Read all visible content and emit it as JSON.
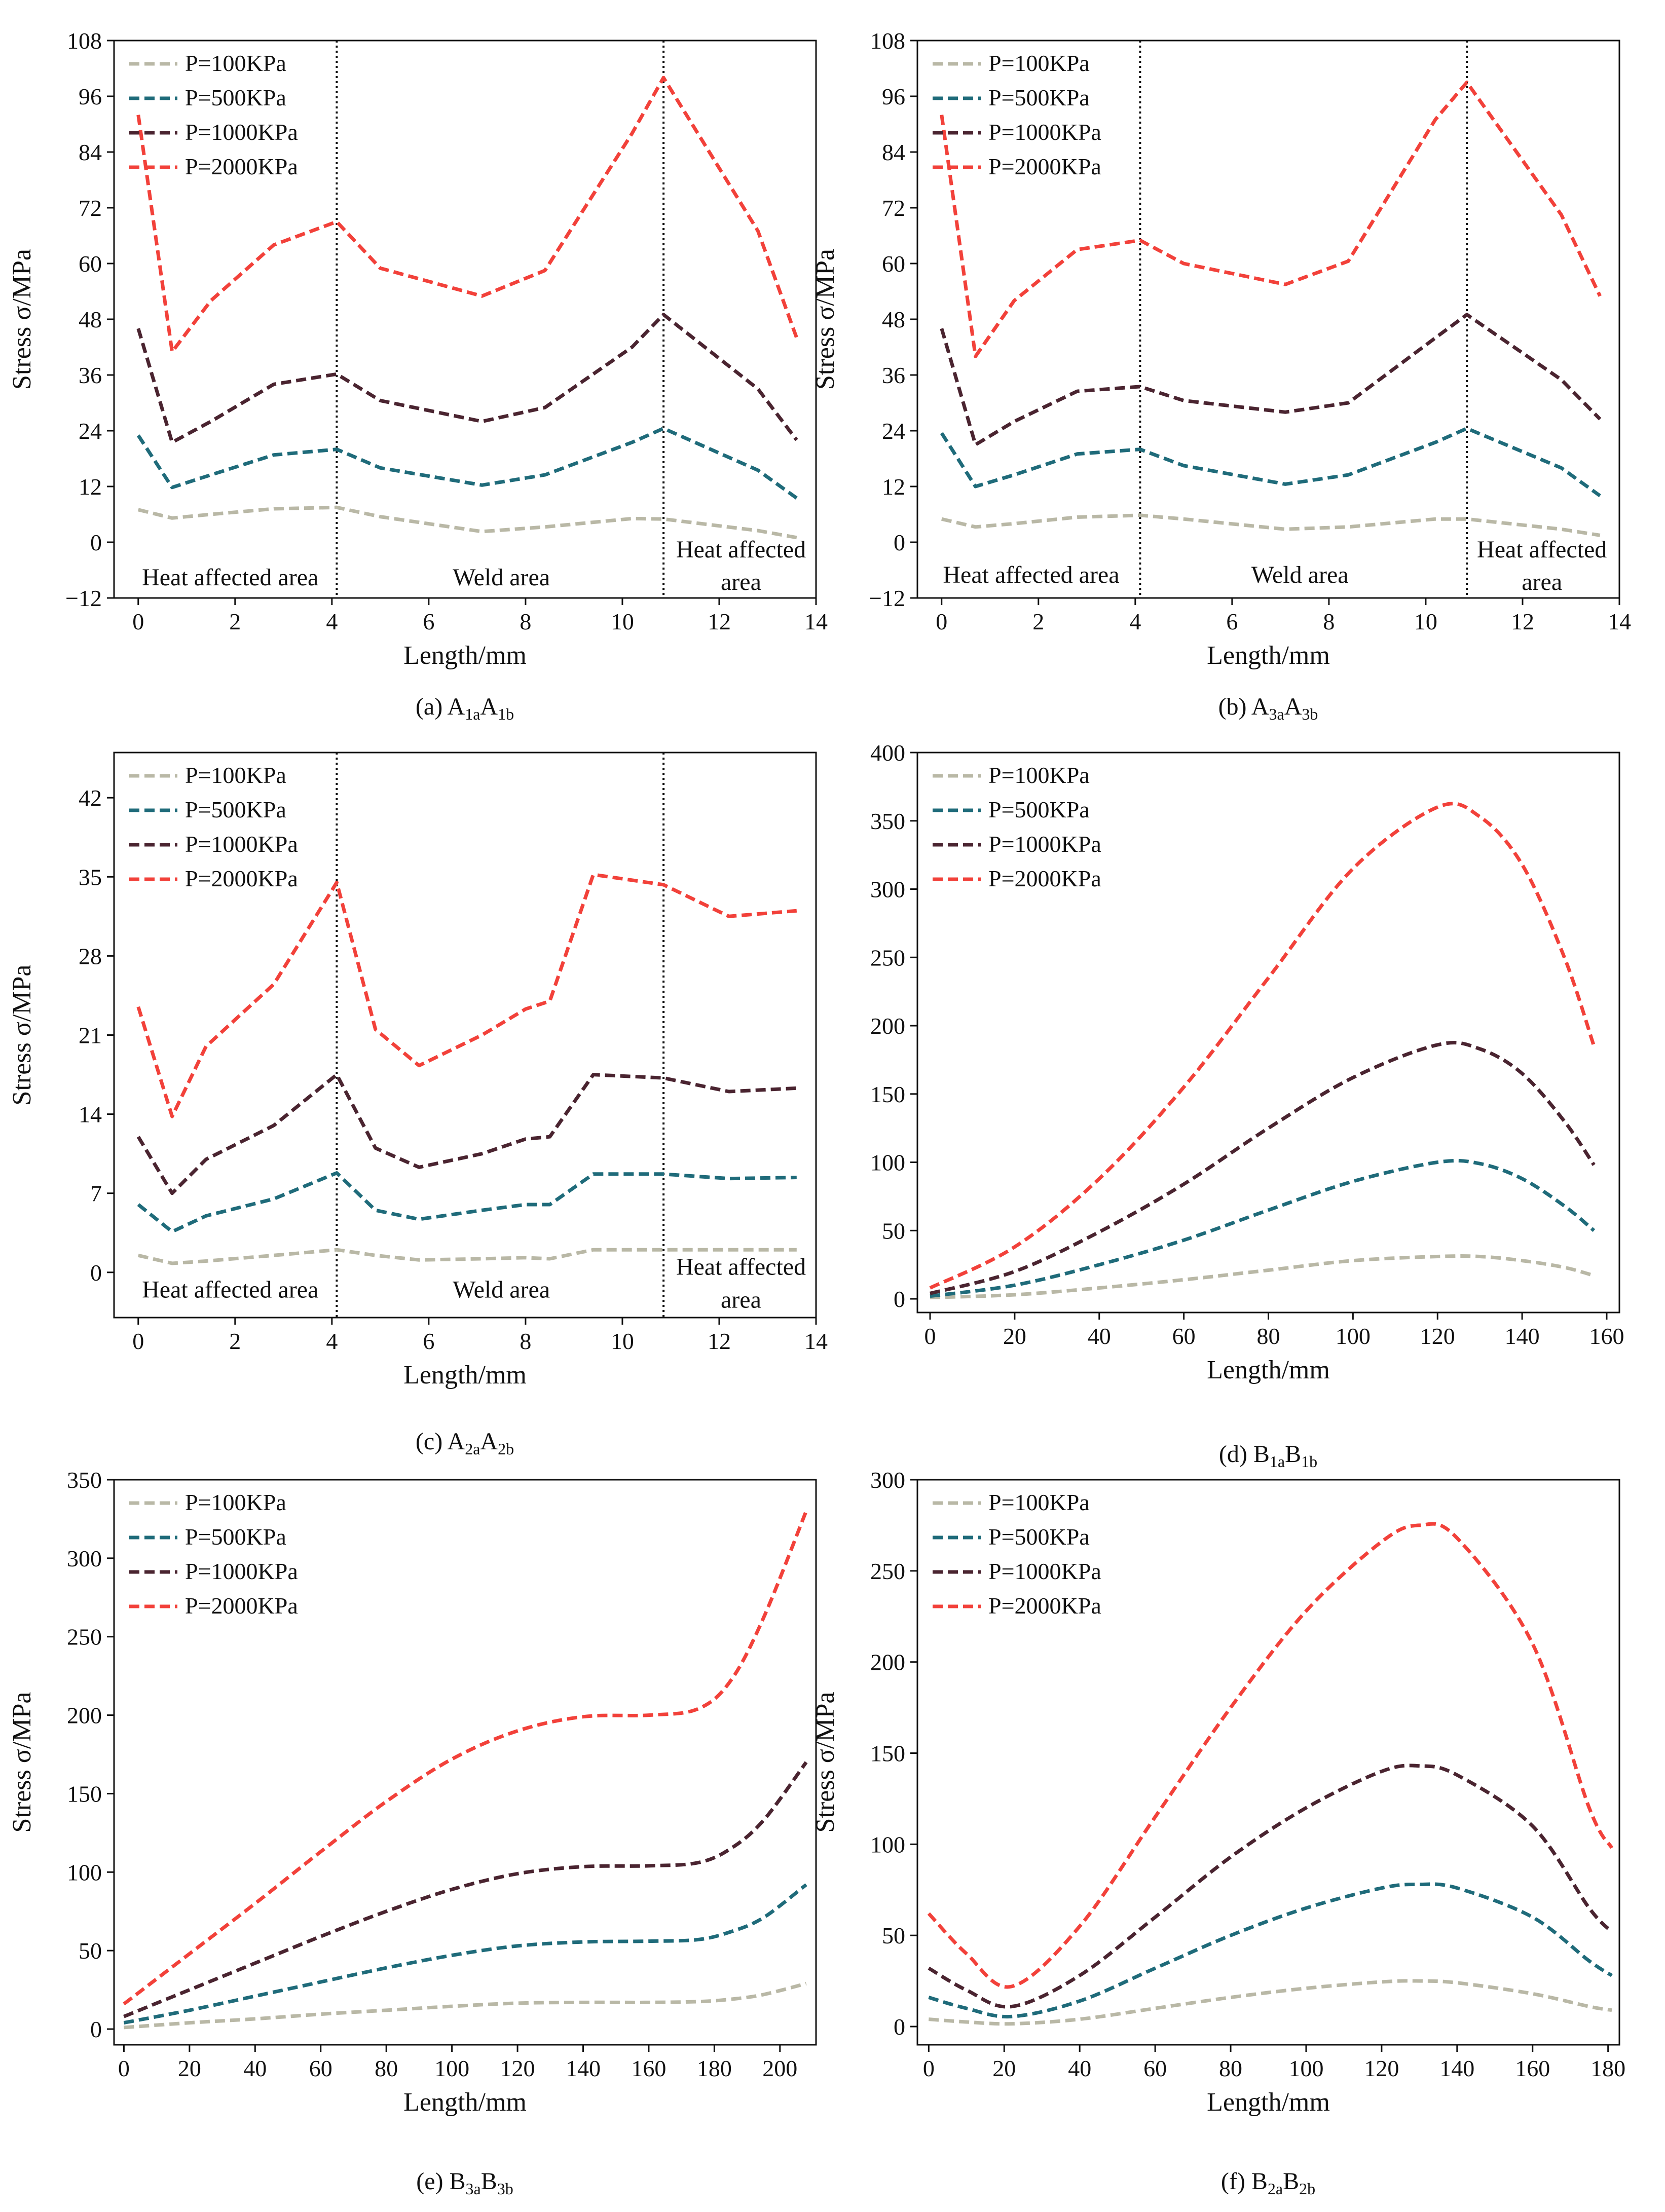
{
  "legend_labels": [
    "P=100KPa",
    "P=500KPa",
    "P=1000KPa",
    "P=2000KPa"
  ],
  "series_colors": [
    "#b9b8a6",
    "#1f6b7a",
    "#4a2430",
    "#f2413a"
  ],
  "chart_data": [
    {
      "id": "a",
      "type": "line",
      "caption_main": "(a) A",
      "caption_sub1": "1a",
      "caption_mid": "A",
      "caption_sub2": "1b",
      "xlabel": "Length/mm",
      "ylabel": "Stress σ/MPa",
      "xlim": [
        -0.5,
        14
      ],
      "ylim": [
        -12,
        108
      ],
      "xticks": [
        0,
        2,
        4,
        6,
        8,
        10,
        12,
        14
      ],
      "yticks": [
        -12,
        0,
        12,
        24,
        36,
        48,
        60,
        72,
        84,
        96,
        108
      ],
      "ytick_labels": [
        "−12",
        "0",
        "12",
        "24",
        "36",
        "48",
        "60",
        "72",
        "84",
        "96",
        "108"
      ],
      "vlines": [
        4.1,
        10.85
      ],
      "region_labels": [
        {
          "text": "Heat affected area",
          "x": 1.9,
          "y": -7.5,
          "anchor": "middle"
        },
        {
          "text": "Weld area",
          "x": 7.5,
          "y": -7.5,
          "anchor": "middle"
        },
        {
          "text": "Heat affected",
          "x": 12.45,
          "y": -1.5,
          "anchor": "middle"
        },
        {
          "text": "area",
          "x": 12.45,
          "y": -8.5,
          "anchor": "middle"
        }
      ],
      "series": [
        {
          "name": "P=100KPa",
          "x": [
            0,
            0.7,
            1.5,
            2.8,
            4.1,
            5.0,
            7.1,
            8.4,
            10.2,
            10.85,
            12.8,
            13.6
          ],
          "y": [
            7,
            5.2,
            6,
            7.2,
            7.5,
            5.5,
            2.3,
            3.3,
            5.1,
            5,
            2.5,
            1
          ]
        },
        {
          "name": "P=500KPa",
          "x": [
            0,
            0.7,
            1.5,
            2.8,
            4.1,
            5.0,
            7.1,
            8.4,
            10.2,
            10.85,
            12.8,
            13.6
          ],
          "y": [
            23,
            11.8,
            14.5,
            18.8,
            20,
            16,
            12.3,
            14.5,
            21.5,
            24.5,
            15.5,
            9.5
          ]
        },
        {
          "name": "P=1000KPa",
          "x": [
            0,
            0.7,
            1.5,
            2.8,
            4.1,
            5.0,
            7.1,
            8.4,
            10.2,
            10.85,
            12.8,
            13.6
          ],
          "y": [
            46,
            21.5,
            26,
            34,
            36.2,
            30.5,
            26,
            29,
            42,
            49,
            33,
            22
          ]
        },
        {
          "name": "P=2000KPa",
          "x": [
            0,
            0.7,
            1.5,
            2.8,
            4.1,
            5.0,
            7.1,
            8.4,
            10.2,
            10.85,
            12.8,
            13.6
          ],
          "y": [
            92,
            41,
            52,
            64,
            69,
            59,
            53,
            58.5,
            88,
            100,
            67,
            44
          ]
        }
      ]
    },
    {
      "id": "b",
      "type": "line",
      "caption_main": "(b) A",
      "caption_sub1": "3a",
      "caption_mid": "A",
      "caption_sub2": "3b",
      "xlabel": "Length/mm",
      "ylabel": "Stress σ/MPa",
      "xlim": [
        -0.5,
        14
      ],
      "ylim": [
        -12,
        108
      ],
      "xticks": [
        0,
        2,
        4,
        6,
        8,
        10,
        12,
        14
      ],
      "yticks": [
        -12,
        0,
        12,
        24,
        36,
        48,
        60,
        72,
        84,
        96,
        108
      ],
      "ytick_labels": [
        "−12",
        "0",
        "12",
        "24",
        "36",
        "48",
        "60",
        "72",
        "84",
        "96",
        "108"
      ],
      "vlines": [
        4.1,
        10.85
      ],
      "region_labels": [
        {
          "text": "Heat affected area",
          "x": 1.85,
          "y": -7,
          "anchor": "middle"
        },
        {
          "text": "Weld area",
          "x": 7.4,
          "y": -7,
          "anchor": "middle"
        },
        {
          "text": "Heat affected",
          "x": 12.4,
          "y": -1.5,
          "anchor": "middle"
        },
        {
          "text": "area",
          "x": 12.4,
          "y": -8.5,
          "anchor": "middle"
        }
      ],
      "series": [
        {
          "name": "P=100KPa",
          "x": [
            0,
            0.7,
            1.5,
            2.8,
            4.1,
            5.0,
            7.1,
            8.4,
            10.2,
            10.85,
            12.8,
            13.6
          ],
          "y": [
            5,
            3.3,
            4,
            5.4,
            5.8,
            5,
            2.8,
            3.3,
            5,
            5,
            2.8,
            1.5
          ]
        },
        {
          "name": "P=500KPa",
          "x": [
            0,
            0.7,
            1.5,
            2.8,
            4.1,
            5.0,
            7.1,
            8.4,
            10.2,
            10.85,
            12.8,
            13.6
          ],
          "y": [
            23.5,
            12,
            14.5,
            19,
            20,
            16.5,
            12.5,
            14.5,
            21.5,
            24.5,
            16,
            10
          ]
        },
        {
          "name": "P=1000KPa",
          "x": [
            0,
            0.7,
            1.5,
            2.8,
            4.1,
            5.0,
            7.1,
            8.4,
            10.2,
            10.85,
            12.8,
            13.6
          ],
          "y": [
            46,
            21,
            26,
            32.5,
            33.5,
            30.5,
            28,
            30,
            44,
            49,
            35,
            26.5
          ]
        },
        {
          "name": "P=2000KPa",
          "x": [
            0,
            0.7,
            1.5,
            2.8,
            4.1,
            5.0,
            7.1,
            8.4,
            10.2,
            10.85,
            12.8,
            13.6
          ],
          "y": [
            92,
            40,
            52,
            63,
            65,
            60,
            55.5,
            60.5,
            91,
            99,
            70.5,
            53
          ]
        }
      ]
    },
    {
      "id": "c",
      "type": "line",
      "caption_main": "(c) A",
      "caption_sub1": "2a",
      "caption_mid": "A",
      "caption_sub2": "2b",
      "xlabel": "Length/mm",
      "ylabel": "Stress σ/MPa",
      "xlim": [
        -0.5,
        14
      ],
      "ylim": [
        -4,
        46
      ],
      "xticks": [
        0,
        2,
        4,
        6,
        8,
        10,
        12,
        14
      ],
      "yticks": [
        0,
        7,
        14,
        21,
        28,
        35,
        42
      ],
      "ytick_labels": [
        "0",
        "7",
        "14",
        "21",
        "28",
        "35",
        "42"
      ],
      "vlines": [
        4.1,
        10.85
      ],
      "region_labels": [
        {
          "text": "Heat affected area",
          "x": 1.9,
          "y": -1.5,
          "anchor": "middle"
        },
        {
          "text": "Weld area",
          "x": 7.5,
          "y": -1.5,
          "anchor": "middle"
        },
        {
          "text": "Heat affected",
          "x": 12.45,
          "y": 0.5,
          "anchor": "middle"
        },
        {
          "text": "area",
          "x": 12.45,
          "y": -2.4,
          "anchor": "middle"
        }
      ],
      "series": [
        {
          "name": "P=100KPa",
          "x": [
            0,
            0.7,
            1.4,
            2.8,
            4.1,
            4.9,
            5.8,
            7.1,
            8.0,
            8.5,
            9.4,
            10.85,
            12.2,
            13.6
          ],
          "y": [
            1.5,
            0.8,
            1,
            1.5,
            2,
            1.5,
            1.1,
            1.2,
            1.3,
            1.2,
            2,
            2,
            2,
            2
          ]
        },
        {
          "name": "P=500KPa",
          "x": [
            0,
            0.7,
            1.4,
            2.8,
            4.1,
            4.9,
            5.8,
            7.1,
            8.0,
            8.5,
            9.4,
            10.85,
            12.2,
            13.6
          ],
          "y": [
            6,
            3.6,
            5,
            6.5,
            8.8,
            5.5,
            4.7,
            5.5,
            6,
            6,
            8.7,
            8.7,
            8.3,
            8.4
          ]
        },
        {
          "name": "P=1000KPa",
          "x": [
            0,
            0.7,
            1.4,
            2.8,
            4.1,
            4.9,
            5.8,
            7.1,
            8.0,
            8.5,
            9.4,
            10.85,
            12.2,
            13.6
          ],
          "y": [
            12,
            7,
            10,
            13,
            17.5,
            11,
            9.3,
            10.5,
            11.8,
            12,
            17.5,
            17.2,
            16,
            16.3
          ]
        },
        {
          "name": "P=2000KPa",
          "x": [
            0,
            0.7,
            1.4,
            2.8,
            4.1,
            4.9,
            5.8,
            7.1,
            8.0,
            8.5,
            9.4,
            10.85,
            12.2,
            13.6
          ],
          "y": [
            23.5,
            13.8,
            20,
            25.5,
            34.5,
            21.5,
            18.3,
            21,
            23.3,
            24,
            35.2,
            34.3,
            31.5,
            32
          ]
        }
      ]
    },
    {
      "id": "d",
      "type": "line",
      "caption_main": "(d) B",
      "caption_sub1": "1a",
      "caption_mid": "B",
      "caption_sub2": "1b",
      "xlabel": "Length/mm",
      "ylabel": "",
      "xlim": [
        -3,
        163
      ],
      "ylim": [
        -10,
        400
      ],
      "xticks": [
        0,
        20,
        40,
        60,
        80,
        100,
        120,
        140,
        160
      ],
      "yticks": [
        0,
        50,
        100,
        150,
        200,
        250,
        300,
        350,
        400
      ],
      "ytick_labels": [
        "0",
        "50",
        "100",
        "150",
        "200",
        "250",
        "300",
        "350",
        "400"
      ],
      "vlines": [],
      "region_labels": [],
      "series": [
        {
          "name": "P=100KPa",
          "x": [
            0,
            20,
            40,
            60,
            80,
            100,
            120,
            130,
            140,
            150,
            157
          ],
          "y": [
            1,
            3,
            8,
            14,
            21,
            28,
            31,
            31,
            28,
            23,
            17
          ]
        },
        {
          "name": "P=500KPa",
          "x": [
            0,
            20,
            40,
            60,
            80,
            100,
            120,
            130,
            140,
            150,
            157
          ],
          "y": [
            2,
            10,
            25,
            43,
            65,
            86,
            100,
            99,
            88,
            68,
            50
          ]
        },
        {
          "name": "P=1000KPa",
          "x": [
            0,
            20,
            40,
            60,
            80,
            100,
            120,
            130,
            140,
            150,
            157
          ],
          "y": [
            4,
            20,
            49,
            84,
            125,
            162,
            186,
            183,
            165,
            130,
            98
          ]
        },
        {
          "name": "P=2000KPa",
          "x": [
            0,
            20,
            40,
            60,
            80,
            100,
            120,
            130,
            140,
            150,
            157
          ],
          "y": [
            8,
            38,
            88,
            155,
            235,
            315,
            360,
            353,
            318,
            250,
            185
          ]
        }
      ]
    },
    {
      "id": "e",
      "type": "line",
      "caption_main": "(e) B",
      "caption_sub1": "3a",
      "caption_mid": "B",
      "caption_sub2": "3b",
      "xlabel": "Length/mm",
      "ylabel": "Stress σ/MPa",
      "xlim": [
        -3,
        211
      ],
      "ylim": [
        -10,
        350
      ],
      "xticks": [
        0,
        20,
        40,
        60,
        80,
        100,
        120,
        140,
        160,
        180,
        200
      ],
      "yticks": [
        0,
        50,
        100,
        150,
        200,
        250,
        300,
        350
      ],
      "ytick_labels": [
        "0",
        "50",
        "100",
        "150",
        "200",
        "250",
        "300",
        "350"
      ],
      "vlines": [],
      "region_labels": [],
      "series": [
        {
          "name": "P=100KPa",
          "x": [
            0,
            20,
            40,
            60,
            80,
            100,
            120,
            140,
            160,
            175,
            185,
            195,
            208
          ],
          "y": [
            1,
            4,
            6.5,
            9.5,
            12,
            14.5,
            16.5,
            17,
            17,
            17.5,
            19,
            22,
            29
          ]
        },
        {
          "name": "P=500KPa",
          "x": [
            0,
            20,
            40,
            60,
            80,
            100,
            120,
            140,
            160,
            175,
            185,
            195,
            208
          ],
          "y": [
            4,
            12,
            21,
            30,
            39,
            47,
            53,
            55.5,
            56,
            57,
            62,
            71,
            92
          ]
        },
        {
          "name": "P=1000KPa",
          "x": [
            0,
            20,
            40,
            60,
            80,
            100,
            120,
            140,
            160,
            175,
            185,
            195,
            208
          ],
          "y": [
            8,
            25,
            42,
            59,
            75,
            89,
            99,
            103.5,
            104,
            106,
            115,
            133,
            170
          ]
        },
        {
          "name": "P=2000KPa",
          "x": [
            0,
            20,
            40,
            60,
            80,
            100,
            120,
            140,
            160,
            175,
            185,
            195,
            208
          ],
          "y": [
            16,
            48,
            80,
            113,
            145,
            172,
            190,
            199,
            200,
            204,
            222,
            262,
            330
          ]
        }
      ]
    },
    {
      "id": "f",
      "type": "line",
      "caption_main": "(f) B",
      "caption_sub1": "2a",
      "caption_mid": "B",
      "caption_sub2": "2b",
      "xlabel": "Length/mm",
      "ylabel": "Stress σ/MPa",
      "xlim": [
        -3,
        183
      ],
      "ylim": [
        -10,
        300
      ],
      "xticks": [
        0,
        20,
        40,
        60,
        80,
        100,
        120,
        140,
        160,
        180
      ],
      "yticks": [
        0,
        50,
        100,
        150,
        200,
        250,
        300
      ],
      "ytick_labels": [
        "0",
        "50",
        "100",
        "150",
        "200",
        "250",
        "300"
      ],
      "vlines": [],
      "region_labels": [],
      "series": [
        {
          "name": "P=100KPa",
          "x": [
            0,
            10,
            22,
            40,
            60,
            80,
            100,
            120,
            130,
            140,
            160,
            175,
            181
          ],
          "y": [
            4,
            2.5,
            1.5,
            4,
            10,
            16,
            21,
            24.5,
            25,
            24,
            18,
            11,
            9
          ]
        },
        {
          "name": "P=500KPa",
          "x": [
            0,
            10,
            22,
            40,
            60,
            80,
            100,
            120,
            130,
            140,
            160,
            175,
            181
          ],
          "y": [
            16,
            10,
            5.5,
            14,
            32,
            50,
            65,
            76,
            78,
            76,
            60,
            36,
            28
          ]
        },
        {
          "name": "P=1000KPa",
          "x": [
            0,
            10,
            22,
            40,
            60,
            80,
            100,
            120,
            130,
            140,
            160,
            175,
            181
          ],
          "y": [
            32,
            20,
            11,
            28,
            60,
            93,
            120,
            140,
            143,
            138,
            110,
            65,
            52
          ]
        },
        {
          "name": "P=2000KPa",
          "x": [
            0,
            10,
            22,
            40,
            60,
            80,
            100,
            120,
            130,
            140,
            160,
            175,
            181
          ],
          "y": [
            62,
            40,
            22,
            55,
            115,
            175,
            228,
            266,
            275,
            268,
            210,
            120,
            98
          ]
        }
      ]
    }
  ]
}
